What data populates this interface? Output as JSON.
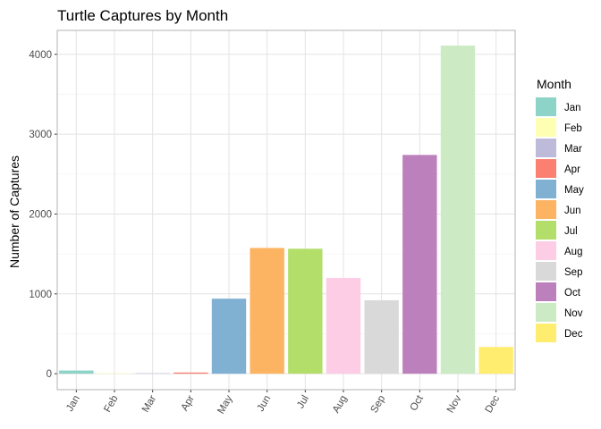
{
  "chart_data": {
    "type": "bar",
    "title": "Turtle Captures by Month",
    "xlabel": "",
    "ylabel": "Number of Captures",
    "categories": [
      "Jan",
      "Feb",
      "Mar",
      "Apr",
      "May",
      "Jun",
      "Jul",
      "Aug",
      "Sep",
      "Oct",
      "Nov",
      "Dec"
    ],
    "values": [
      40,
      3,
      2,
      15,
      940,
      1575,
      1565,
      1200,
      920,
      2740,
      4110,
      335
    ],
    "colors": [
      "#8dd3c7",
      "#ffffb3",
      "#bebada",
      "#fb8072",
      "#80b1d3",
      "#fdb462",
      "#b3de69",
      "#fccde5",
      "#d9d9d9",
      "#bc80bd",
      "#ccebc5",
      "#ffed6f"
    ],
    "ylim": [
      -200,
      4300
    ],
    "yticks": [
      0,
      1000,
      2000,
      3000,
      4000
    ],
    "grid": true,
    "legend": {
      "title": "Month",
      "placement": "right",
      "entries": [
        "Jan",
        "Feb",
        "Mar",
        "Apr",
        "May",
        "Jun",
        "Jul",
        "Aug",
        "Sep",
        "Oct",
        "Nov",
        "Dec"
      ]
    }
  }
}
